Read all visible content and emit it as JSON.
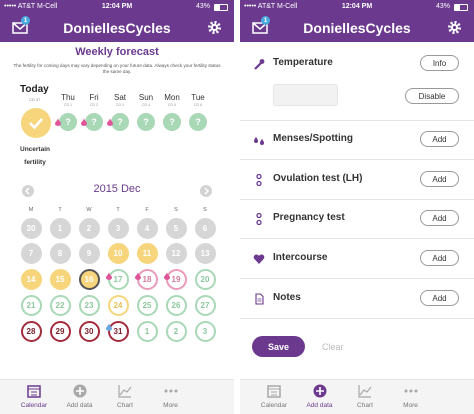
{
  "theme": "#6b3a8e",
  "screens": [
    {
      "status_bar": {
        "carrier": "••••• AT&T M-Cell",
        "time": "12:04 PM",
        "battery": "43%"
      },
      "header": {
        "badge": "1",
        "title": "DoniellesCycles"
      },
      "forecast": {
        "title": "Weekly forecast",
        "note": "The fertility for coming days may vary depending on your future data. Always check your fertility status the same day.",
        "today": {
          "label": "Today",
          "cd": "CD 37",
          "status": "Uncertain fertility",
          "color": "#f6d57c"
        },
        "days": [
          {
            "label": "Thu",
            "cd": "CD 1",
            "mark": "?",
            "color": "#a8d8b6",
            "drop": "#e0559a"
          },
          {
            "label": "Fri",
            "cd": "CD 2",
            "mark": "?",
            "color": "#a8d8b6",
            "drop": "#e0559a"
          },
          {
            "label": "Sat",
            "cd": "CD 3",
            "mark": "?",
            "color": "#a8d8b6",
            "drop": "#e0559a"
          },
          {
            "label": "Sun",
            "cd": "CD 4",
            "mark": "?",
            "color": "#a8d8b6"
          },
          {
            "label": "Mon",
            "cd": "CD 5",
            "mark": "?",
            "color": "#a8d8b6"
          },
          {
            "label": "Tue",
            "cd": "CD 6",
            "mark": "?",
            "color": "#a8d8b6"
          }
        ]
      },
      "calendar": {
        "month": "2015 Dec",
        "weekdays": [
          "M",
          "T",
          "W",
          "T",
          "F",
          "S",
          "S"
        ],
        "days": [
          {
            "label": "30",
            "fill": "#d6d6d6",
            "stroke": "#d6d6d6",
            "text": "#fff"
          },
          {
            "label": "1",
            "fill": "#d6d6d6",
            "stroke": "#d6d6d6",
            "text": "#fff"
          },
          {
            "label": "2",
            "fill": "#d6d6d6",
            "stroke": "#d6d6d6",
            "text": "#fff"
          },
          {
            "label": "3",
            "fill": "#d6d6d6",
            "stroke": "#d6d6d6",
            "text": "#fff"
          },
          {
            "label": "4",
            "fill": "#d6d6d6",
            "stroke": "#d6d6d6",
            "text": "#fff"
          },
          {
            "label": "5",
            "fill": "#d6d6d6",
            "stroke": "#d6d6d6",
            "text": "#fff"
          },
          {
            "label": "6",
            "fill": "#d6d6d6",
            "stroke": "#d6d6d6",
            "text": "#fff"
          },
          {
            "label": "7",
            "fill": "#d6d6d6",
            "stroke": "#d6d6d6",
            "text": "#fff"
          },
          {
            "label": "8",
            "fill": "#d6d6d6",
            "stroke": "#d6d6d6",
            "text": "#fff"
          },
          {
            "label": "9",
            "fill": "#d6d6d6",
            "stroke": "#d6d6d6",
            "text": "#fff"
          },
          {
            "label": "10",
            "fill": "#f6d57c",
            "stroke": "#f6d57c",
            "text": "#fff"
          },
          {
            "label": "11",
            "fill": "#f6d57c",
            "stroke": "#f6d57c",
            "text": "#fff"
          },
          {
            "label": "12",
            "fill": "#d6d6d6",
            "stroke": "#d6d6d6",
            "text": "#fff"
          },
          {
            "label": "13",
            "fill": "#d6d6d6",
            "stroke": "#d6d6d6",
            "text": "#fff"
          },
          {
            "label": "14",
            "fill": "#f6d57c",
            "stroke": "#f6d57c",
            "text": "#fff"
          },
          {
            "label": "15",
            "fill": "#f6d57c",
            "stroke": "#f6d57c",
            "text": "#fff"
          },
          {
            "label": "16",
            "fill": "#f6d57c",
            "stroke": "#555555",
            "text": "#fff"
          },
          {
            "label": "17",
            "fill": "#fff",
            "stroke": "#a8d8b6",
            "text": "#8cc79d",
            "drop": "#e0559a"
          },
          {
            "label": "18",
            "fill": "#fff",
            "stroke": "#e89ab8",
            "text": "#d27a9c",
            "drop": "#e0559a"
          },
          {
            "label": "19",
            "fill": "#fff",
            "stroke": "#e89ab8",
            "text": "#d27a9c",
            "drop": "#e0559a"
          },
          {
            "label": "20",
            "fill": "#fff",
            "stroke": "#a8d8b6",
            "text": "#8cc79d"
          },
          {
            "label": "21",
            "fill": "#fff",
            "stroke": "#a8d8b6",
            "text": "#8cc79d"
          },
          {
            "label": "22",
            "fill": "#fff",
            "stroke": "#a8d8b6",
            "text": "#8cc79d"
          },
          {
            "label": "23",
            "fill": "#fff",
            "stroke": "#a8d8b6",
            "text": "#8cc79d"
          },
          {
            "label": "24",
            "fill": "#fff",
            "stroke": "#f6d57c",
            "text": "#e6bf5a"
          },
          {
            "label": "25",
            "fill": "#fff",
            "stroke": "#a8d8b6",
            "text": "#8cc79d"
          },
          {
            "label": "26",
            "fill": "#fff",
            "stroke": "#a8d8b6",
            "text": "#8cc79d"
          },
          {
            "label": "27",
            "fill": "#fff",
            "stroke": "#a8d8b6",
            "text": "#8cc79d"
          },
          {
            "label": "28",
            "fill": "#fff",
            "stroke": "#a32c3c",
            "text": "#7a1f2b"
          },
          {
            "label": "29",
            "fill": "#fff",
            "stroke": "#a32c3c",
            "text": "#7a1f2b"
          },
          {
            "label": "30",
            "fill": "#fff",
            "stroke": "#a32c3c",
            "text": "#7a1f2b"
          },
          {
            "label": "31",
            "fill": "#fff",
            "stroke": "#a32c3c",
            "text": "#7a1f2b",
            "drop": "#6aa7e0"
          },
          {
            "label": "1",
            "fill": "#fff",
            "stroke": "#a8d8b6",
            "text": "#8cc79d"
          },
          {
            "label": "2",
            "fill": "#fff",
            "stroke": "#a8d8b6",
            "text": "#8cc79d"
          },
          {
            "label": "3",
            "fill": "#fff",
            "stroke": "#a8d8b6",
            "text": "#8cc79d"
          }
        ]
      },
      "tabs": {
        "items": [
          "Calendar",
          "Add data",
          "Chart",
          "More"
        ],
        "active": 0
      }
    },
    {
      "status_bar": {
        "carrier": "••••• AT&T M-Cell",
        "time": "12:04 PM",
        "battery": "43%"
      },
      "header": {
        "badge": "1",
        "title": "DoniellesCycles"
      },
      "entries": [
        {
          "label": "Temperature",
          "button": "Info",
          "second_button": "Disable"
        },
        {
          "label": "Menses/Spotting",
          "button": "Add"
        },
        {
          "label": "Ovulation test (LH)",
          "button": "Add"
        },
        {
          "label": "Pregnancy test",
          "button": "Add"
        },
        {
          "label": "Intercourse",
          "button": "Add"
        },
        {
          "label": "Notes",
          "button": "Add"
        }
      ],
      "actions": {
        "save": "Save",
        "clear": "Clear"
      },
      "tabs": {
        "items": [
          "Calendar",
          "Add data",
          "Chart",
          "More"
        ],
        "active": 1
      }
    }
  ]
}
